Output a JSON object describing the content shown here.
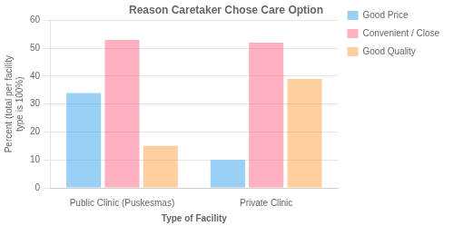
{
  "chart_data": {
    "type": "bar",
    "title": "Reason Caretaker Chose Care Option",
    "xlabel": "Type of Facility",
    "ylabel": "Percent (total per facility\ntype is 100%)",
    "categories": [
      "Public Clinic (Puskesmas)",
      "Private Clinic"
    ],
    "series": [
      {
        "name": "Good Price",
        "values": [
          34,
          10
        ]
      },
      {
        "name": "Convenient / Close",
        "values": [
          53,
          52
        ]
      },
      {
        "name": "Good Quality",
        "values": [
          15,
          39
        ]
      }
    ],
    "ylim": [
      0,
      60
    ],
    "yticks": [
      0,
      10,
      20,
      30,
      40,
      50,
      60
    ],
    "grid": true,
    "legend": "right"
  }
}
